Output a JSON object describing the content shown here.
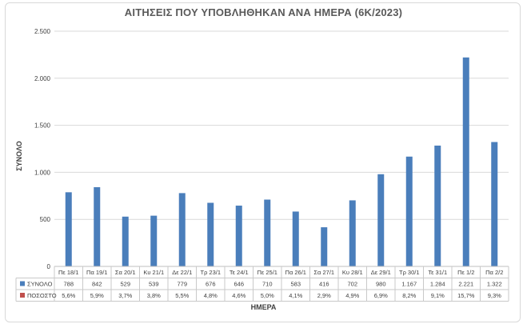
{
  "chart_data": {
    "type": "bar",
    "title": "ΑΙΤΗΣΕΙΣ ΠΟΥ ΥΠΟΒΛΗΘΗΚΑΝ ΑΝΑ ΗΜΕΡΑ (6Κ/2023)",
    "xlabel": "ΗΜΕΡΑ",
    "ylabel": "ΣΥΝΟΛΟ",
    "ylim": [
      0,
      2500
    ],
    "yticks": [
      0,
      500,
      1000,
      1500,
      2000,
      2500
    ],
    "ytick_labels": [
      "0",
      "500",
      "1.000",
      "1.500",
      "2.000",
      "2.500"
    ],
    "grid": "horizontal",
    "categories": [
      "Πε 18/1",
      "Πα 19/1",
      "Σα 20/1",
      "Κυ 21/1",
      "Δε 22/1",
      "Τρ 23/1",
      "Τε 24/1",
      "Πε 25/1",
      "Πα 26/1",
      "Σα 27/1",
      "Κυ 28/1",
      "Δε 29/1",
      "Τρ 30/1",
      "Τε 31/1",
      "Πε 1/2",
      "Πα 2/2"
    ],
    "series": [
      {
        "name": "ΣΥΝΟΛΟ",
        "color": "#4a7ebb",
        "values": [
          788,
          842,
          529,
          539,
          779,
          676,
          646,
          710,
          583,
          416,
          702,
          980,
          1167,
          1284,
          2221,
          1322
        ],
        "labels": [
          "788",
          "842",
          "529",
          "539",
          "779",
          "676",
          "646",
          "710",
          "583",
          "416",
          "702",
          "980",
          "1.167",
          "1.284",
          "2.221",
          "1.322"
        ]
      },
      {
        "name": "ΠΟΣΟΣΤΟ",
        "color": "#c0504d",
        "values": [
          5.6,
          5.9,
          3.7,
          3.8,
          5.5,
          4.8,
          4.6,
          5.0,
          4.1,
          2.9,
          4.9,
          6.9,
          8.2,
          9.1,
          15.7,
          9.3
        ],
        "labels": [
          "5,6%",
          "5,9%",
          "3,7%",
          "3,8%",
          "5,5%",
          "4,8%",
          "4,6%",
          "5,0%",
          "4,1%",
          "2,9%",
          "4,9%",
          "6,9%",
          "8,2%",
          "9,1%",
          "15,7%",
          "9,3%"
        ]
      }
    ]
  }
}
